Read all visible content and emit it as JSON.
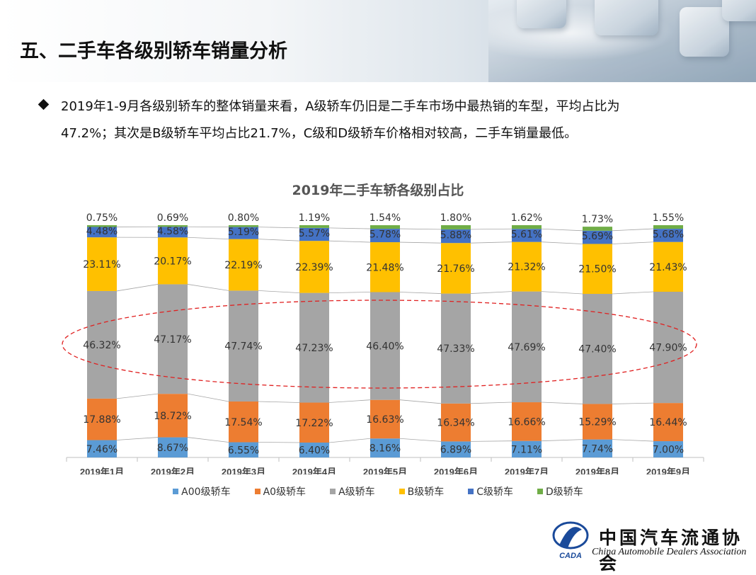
{
  "page": {
    "title": "五、二手车各级别轿车销量分析",
    "summary_line1": "2019年1-9月各级别轿车的整体销量来看，A级轿车仍旧是二手车市场中最热销的车型，平均占比为",
    "summary_line2": "47.2%；其次是B级轿车平均占比21.7%，C级和D级轿车价格相对较高，二手车销量最低。",
    "logo_cn": "中国汽车流通协会",
    "logo_en": "China Automobile Dealers Association",
    "logo_abbr": "CADA"
  },
  "chart_data": {
    "type": "bar",
    "stacked": true,
    "percent": true,
    "title": "2019年二手车轿各级别占比",
    "categories": [
      "2019年1月",
      "2019年2月",
      "2019年3月",
      "2019年4月",
      "2019年5月",
      "2019年6月",
      "2019年7月",
      "2019年8月",
      "2019年9月"
    ],
    "series": [
      {
        "name": "A00级轿车",
        "color": "#5b9bd5",
        "values": [
          7.46,
          8.67,
          6.55,
          6.4,
          8.16,
          6.89,
          7.11,
          7.74,
          7.0
        ]
      },
      {
        "name": "A0级轿车",
        "color": "#ed7d31",
        "values": [
          17.88,
          18.72,
          17.54,
          17.22,
          16.63,
          16.34,
          16.66,
          15.29,
          16.44
        ]
      },
      {
        "name": "A级轿车",
        "color": "#a5a5a5",
        "values": [
          46.32,
          47.17,
          47.74,
          47.23,
          46.4,
          47.33,
          47.69,
          47.4,
          47.9
        ]
      },
      {
        "name": "B级轿车",
        "color": "#ffc000",
        "values": [
          23.11,
          20.17,
          22.19,
          22.39,
          21.48,
          21.76,
          21.32,
          21.5,
          21.43
        ]
      },
      {
        "name": "C级轿车",
        "color": "#4472c4",
        "values": [
          4.48,
          4.58,
          5.19,
          5.57,
          5.78,
          5.88,
          5.61,
          5.69,
          5.68
        ]
      },
      {
        "name": "D级轿车",
        "color": "#70ad47",
        "values": [
          0.75,
          0.69,
          0.8,
          1.19,
          1.54,
          1.8,
          1.62,
          1.73,
          1.55
        ]
      }
    ],
    "value_format": "percent_2dp",
    "series_lines": true,
    "highlight": {
      "shape": "dashed-ellipse",
      "color": "#e02020",
      "target_series": "A级轿车"
    },
    "legend_position": "bottom",
    "grid": false
  }
}
